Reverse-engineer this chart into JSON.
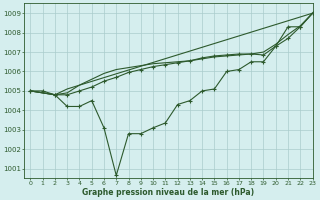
{
  "title": "Graphe pression niveau de la mer (hPa)",
  "background_color": "#d5eeee",
  "grid_color": "#aacccc",
  "line_color": "#2d5a2d",
  "xlim": [
    -0.5,
    23
  ],
  "ylim": [
    1000.5,
    1009.5
  ],
  "yticks": [
    1001,
    1002,
    1003,
    1004,
    1005,
    1006,
    1007,
    1008,
    1009
  ],
  "xticks": [
    0,
    1,
    2,
    3,
    4,
    5,
    6,
    7,
    8,
    9,
    10,
    11,
    12,
    13,
    14,
    15,
    16,
    17,
    18,
    19,
    20,
    21,
    22,
    23
  ],
  "line1_x": [
    0,
    1,
    2,
    3,
    4,
    5,
    6,
    7,
    8,
    9,
    10,
    11,
    12,
    13,
    14,
    15,
    16,
    17,
    18,
    19,
    20,
    21,
    22,
    23
  ],
  "line1_y": [
    1005.0,
    1005.0,
    1004.8,
    1004.2,
    1004.2,
    1004.5,
    1003.1,
    1000.65,
    1002.8,
    1002.8,
    1003.1,
    1003.35,
    1004.3,
    1004.5,
    1005.0,
    1005.1,
    1006.0,
    1006.1,
    1006.5,
    1006.5,
    1007.3,
    1008.3,
    1008.3,
    1009.0
  ],
  "line2_x": [
    0,
    2,
    3,
    4,
    5,
    6,
    7,
    8,
    9,
    10,
    11,
    12,
    13,
    14,
    15,
    16,
    17,
    18,
    19,
    20,
    21,
    22,
    23
  ],
  "line2_y": [
    1005.0,
    1004.8,
    1004.8,
    1005.0,
    1005.2,
    1005.5,
    1005.7,
    1005.95,
    1006.1,
    1006.25,
    1006.35,
    1006.45,
    1006.55,
    1006.7,
    1006.8,
    1006.85,
    1006.9,
    1006.9,
    1006.85,
    1007.3,
    1007.7,
    1008.3,
    1009.0
  ],
  "line3_x": [
    0,
    2,
    3,
    23
  ],
  "line3_y": [
    1005.0,
    1004.8,
    1005.1,
    1009.0
  ],
  "line4_x": [
    0,
    2,
    3,
    4,
    5,
    6,
    7,
    8,
    9,
    10,
    11,
    12,
    13,
    14,
    15,
    16,
    17,
    18,
    19,
    20,
    21,
    22,
    23
  ],
  "line4_y": [
    1005.0,
    1004.8,
    1004.9,
    1005.3,
    1005.6,
    1005.9,
    1006.1,
    1006.2,
    1006.3,
    1006.4,
    1006.45,
    1006.5,
    1006.55,
    1006.65,
    1006.75,
    1006.8,
    1006.85,
    1006.9,
    1007.0,
    1007.4,
    1007.9,
    1008.35,
    1009.0
  ]
}
